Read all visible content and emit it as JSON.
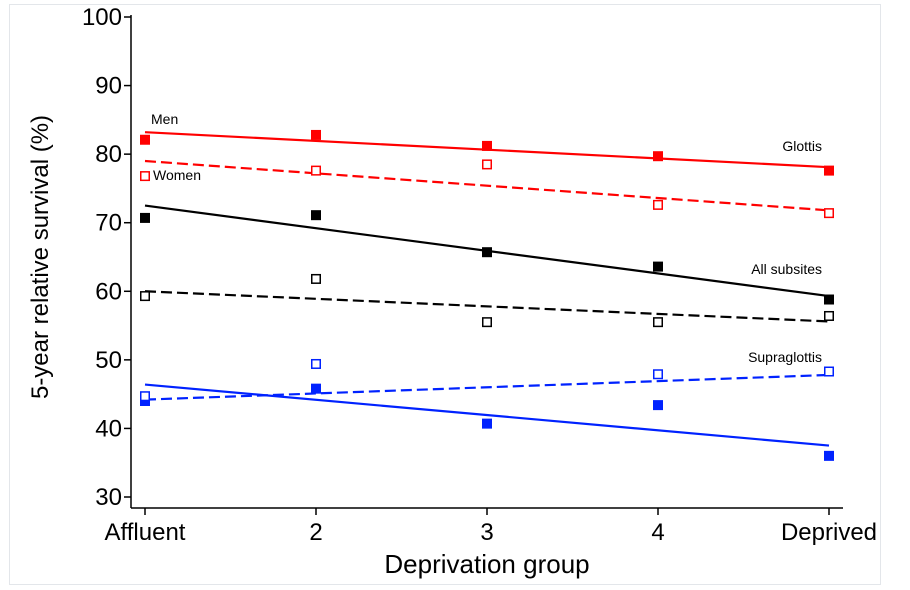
{
  "chart_data": {
    "type": "scatter",
    "xlabel": "Deprivation group",
    "ylabel": "5-year relative survival (%)",
    "ylim": [
      30,
      100
    ],
    "x": [
      1,
      2,
      3,
      4,
      5
    ],
    "x_tick_labels": [
      "Affluent",
      "2",
      "3",
      "4",
      "Deprived"
    ],
    "y_ticks": [
      30,
      40,
      50,
      60,
      70,
      80,
      90,
      100
    ],
    "grid": false,
    "annotations": [
      {
        "id": "men",
        "text": "Men"
      },
      {
        "id": "women",
        "text": "Women"
      },
      {
        "id": "glottis",
        "text": "Glottis"
      },
      {
        "id": "all",
        "text": "All subsites"
      },
      {
        "id": "supraglottis",
        "text": "Supraglottis"
      }
    ],
    "series": [
      {
        "id": "glottis_men",
        "color": "#ff0000",
        "marker": "filled-square",
        "line": "solid",
        "values": [
          82.1,
          82.8,
          81.2,
          79.7,
          77.6
        ],
        "fit": [
          83.2,
          78.1
        ]
      },
      {
        "id": "glottis_women",
        "color": "#ff0000",
        "marker": "open-square",
        "line": "dashed",
        "values": [
          76.8,
          77.6,
          78.5,
          72.6,
          71.4
        ],
        "fit": [
          79.0,
          71.8
        ]
      },
      {
        "id": "all_men",
        "color": "#000000",
        "marker": "filled-square",
        "line": "solid",
        "values": [
          70.7,
          71.1,
          65.7,
          63.6,
          58.8
        ],
        "fit": [
          72.5,
          59.3
        ]
      },
      {
        "id": "all_women",
        "color": "#000000",
        "marker": "open-square",
        "line": "dashed",
        "values": [
          59.3,
          61.8,
          55.5,
          55.5,
          56.4
        ],
        "fit": [
          60.0,
          55.6
        ]
      },
      {
        "id": "supraglottis_men",
        "color": "#0022ff",
        "marker": "filled-square",
        "line": "solid",
        "values": [
          44.0,
          45.8,
          40.7,
          43.4,
          36.0
        ],
        "fit": [
          46.4,
          37.5
        ]
      },
      {
        "id": "supraglottis_women",
        "color": "#0022ff",
        "marker": "open-square",
        "line": "dashed",
        "values": [
          44.7,
          49.4,
          null,
          47.9,
          48.3
        ],
        "fit": [
          44.2,
          47.8
        ]
      }
    ]
  }
}
